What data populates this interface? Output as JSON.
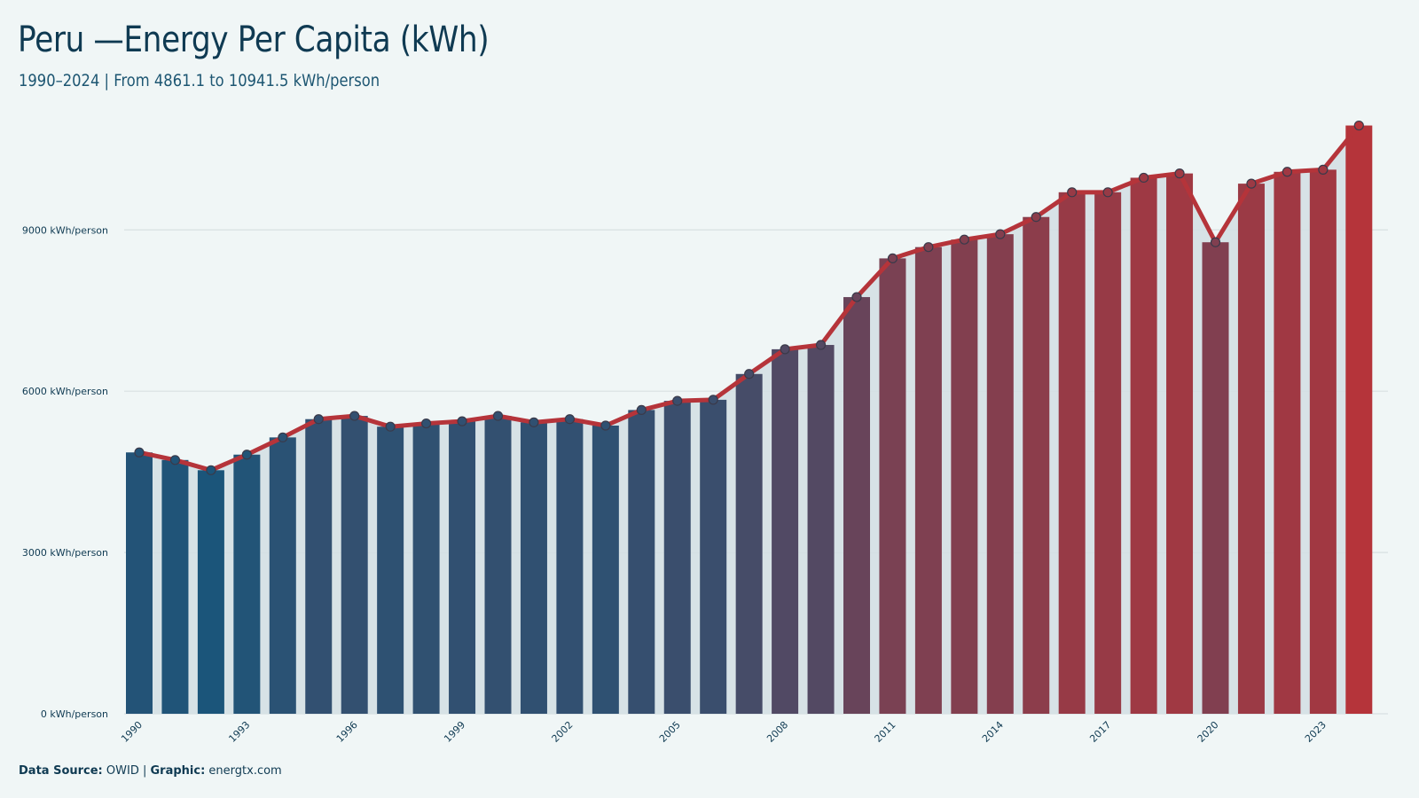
{
  "page": {
    "title": "Peru —Energy Per Capita (kWh)",
    "subtitle": "1990–2024 | From 4861.1 to 10941.5 kWh/person",
    "footer": {
      "source_label": "Data Source:",
      "source_value": "OWID |",
      "graphic_label": "Graphic:",
      "graphic_value": "energtx.com"
    }
  },
  "colors": {
    "background": "#f0f6f6",
    "bar_start": "#1b557a",
    "bar_end": "#b5343a",
    "line": "#b5343a",
    "marker_fill": "#4a5a70",
    "grid": "#d8e0e2",
    "text": "#0f3a52"
  },
  "chart_data": {
    "type": "bar",
    "title": "Peru —Energy Per Capita (kWh)",
    "subtitle": "1990–2024 | From 4861.1 to 10941.5 kWh/person",
    "unit": "kWh/person",
    "ylim": [
      0,
      11000
    ],
    "yticks": [
      0,
      3000,
      6000,
      9000
    ],
    "ytick_labels": [
      "0 kWh/person",
      "3000 kWh/person",
      "6000 kWh/person",
      "9000 kWh/person"
    ],
    "xtick_labels": [
      "1990",
      "1993",
      "1996",
      "1999",
      "2002",
      "2005",
      "2008",
      "2011",
      "2014",
      "2017",
      "2020",
      "2023"
    ],
    "grid": true,
    "legend": "none",
    "categories": [
      1990,
      1991,
      1992,
      1993,
      1994,
      1995,
      1996,
      1997,
      1998,
      1999,
      2000,
      2001,
      2002,
      2003,
      2004,
      2005,
      2006,
      2007,
      2008,
      2009,
      2010,
      2011,
      2012,
      2013,
      2014,
      2015,
      2016,
      2017,
      2018,
      2019,
      2020,
      2021,
      2022,
      2023,
      2024
    ],
    "values": [
      4861.1,
      4720,
      4530,
      4820,
      5140,
      5480,
      5540,
      5340,
      5400,
      5440,
      5540,
      5420,
      5480,
      5360,
      5650,
      5820,
      5840,
      6320,
      6780,
      6860,
      7750,
      8470,
      8680,
      8820,
      8920,
      9240,
      9700,
      9700,
      9970,
      10050,
      8770,
      9860,
      10080,
      10120,
      10941.5
    ]
  }
}
